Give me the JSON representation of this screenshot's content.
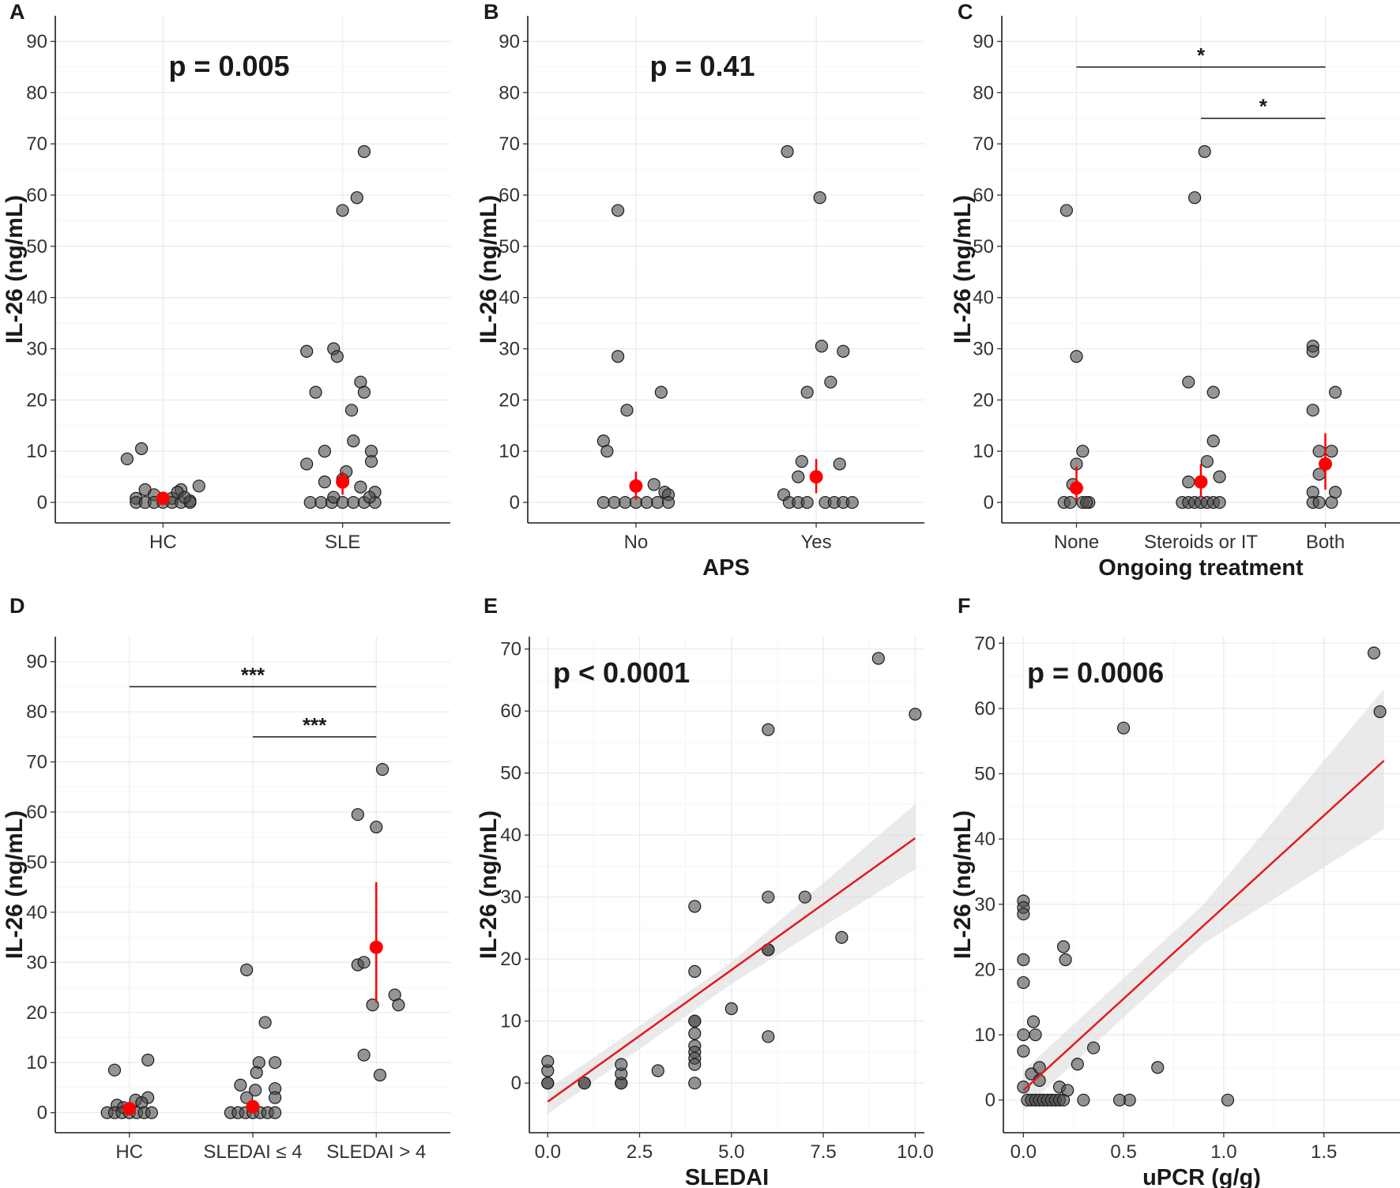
{
  "chart_data": [
    {
      "panel": "A",
      "type": "scatter",
      "ylabel": "IL-26 (ng/mL)",
      "xlabel": "",
      "ylim": [
        -4,
        95
      ],
      "yticks": [
        0,
        10,
        20,
        30,
        40,
        50,
        60,
        70,
        80,
        90
      ],
      "categories": [
        "HC",
        "SLE"
      ],
      "annotation": "p = 0.005",
      "points": [
        [
          [
            1,
            -0.2,
            8.5
          ],
          [
            1,
            -0.15,
            0.8
          ],
          [
            1,
            -0.1,
            2.5
          ],
          [
            1,
            -0.05,
            1.5
          ],
          [
            1,
            0.05,
            0.8
          ],
          [
            1,
            0.1,
            2.5
          ],
          [
            1,
            0.15,
            0.3
          ],
          [
            1,
            0.2,
            3.2
          ],
          [
            1,
            -0.15,
            0
          ],
          [
            1,
            -0.1,
            0
          ],
          [
            1,
            -0.05,
            0
          ],
          [
            1,
            0,
            0
          ],
          [
            1,
            0.05,
            0
          ],
          [
            1,
            0.1,
            0
          ],
          [
            1,
            0.15,
            0
          ],
          [
            1,
            -0.12,
            10.5
          ],
          [
            1,
            0.08,
            2
          ],
          [
            1,
            0.12,
            1
          ]
        ],
        [
          [
            2,
            -0.2,
            29.5
          ],
          [
            2,
            -0.15,
            21.5
          ],
          [
            2,
            -0.2,
            7.5
          ],
          [
            2,
            -0.1,
            10
          ],
          [
            2,
            -0.05,
            30
          ],
          [
            2,
            -0.03,
            28.5
          ],
          [
            2,
            0,
            57
          ],
          [
            2,
            0.08,
            59.5
          ],
          [
            2,
            0.12,
            68.5
          ],
          [
            2,
            0.1,
            23.5
          ],
          [
            2,
            0.12,
            21.5
          ],
          [
            2,
            0.05,
            18
          ],
          [
            2,
            0.06,
            12
          ],
          [
            2,
            0.16,
            10
          ],
          [
            2,
            0.16,
            8
          ],
          [
            2,
            -0.1,
            4
          ],
          [
            2,
            0,
            4.5
          ],
          [
            2,
            0.02,
            6
          ],
          [
            2,
            0.1,
            3
          ],
          [
            2,
            0.18,
            2
          ],
          [
            2,
            -0.18,
            0
          ],
          [
            2,
            -0.12,
            0
          ],
          [
            2,
            -0.06,
            0
          ],
          [
            2,
            0,
            0
          ],
          [
            2,
            0.06,
            0
          ],
          [
            2,
            0.12,
            0
          ],
          [
            2,
            0.18,
            0
          ],
          [
            2,
            -0.05,
            1
          ],
          [
            2,
            0.15,
            1
          ]
        ]
      ],
      "means": [
        [
          1,
          0.8,
          0.3,
          1.3
        ],
        [
          2,
          4,
          1.5,
          6
        ]
      ]
    },
    {
      "panel": "B",
      "type": "scatter",
      "ylabel": "IL-26 (ng/mL)",
      "xlabel": "APS",
      "ylim": [
        -4,
        95
      ],
      "yticks": [
        0,
        10,
        20,
        30,
        40,
        50,
        60,
        70,
        80,
        90
      ],
      "categories": [
        "No",
        "Yes"
      ],
      "annotation": "p = 0.41",
      "points": [
        [
          [
            1,
            -0.18,
            12
          ],
          [
            1,
            -0.16,
            10
          ],
          [
            1,
            -0.1,
            57
          ],
          [
            1,
            -0.1,
            28.5
          ],
          [
            1,
            -0.05,
            18
          ],
          [
            1,
            0.1,
            3.5
          ],
          [
            1,
            0.14,
            21.5
          ],
          [
            1,
            0.16,
            2
          ],
          [
            1,
            0.18,
            1.5
          ],
          [
            1,
            -0.18,
            0
          ],
          [
            1,
            -0.12,
            0
          ],
          [
            1,
            -0.06,
            0
          ],
          [
            1,
            0,
            0
          ],
          [
            1,
            0.06,
            0
          ],
          [
            1,
            0.12,
            0
          ],
          [
            1,
            0.18,
            0
          ]
        ],
        [
          [
            2,
            -0.16,
            68.5
          ],
          [
            2,
            0.02,
            59.5
          ],
          [
            2,
            0.15,
            29.5
          ],
          [
            2,
            0.03,
            30.5
          ],
          [
            2,
            -0.05,
            21.5
          ],
          [
            2,
            0.08,
            23.5
          ],
          [
            2,
            -0.1,
            5
          ],
          [
            2,
            -0.08,
            8
          ],
          [
            2,
            0.13,
            7.5
          ],
          [
            2,
            -0.18,
            1.5
          ],
          [
            2,
            -0.15,
            0
          ],
          [
            2,
            -0.1,
            0
          ],
          [
            2,
            -0.05,
            0
          ],
          [
            2,
            0.05,
            0
          ],
          [
            2,
            0.1,
            0
          ],
          [
            2,
            0.15,
            0
          ],
          [
            2,
            0.2,
            0
          ]
        ]
      ],
      "means": [
        [
          1,
          3.2,
          0.5,
          6
        ],
        [
          2,
          5,
          1.8,
          8.5
        ]
      ]
    },
    {
      "panel": "C",
      "type": "scatter",
      "ylabel": "IL-26 (ng/mL)",
      "xlabel": "Ongoing treatment",
      "ylim": [
        -4,
        95
      ],
      "yticks": [
        0,
        10,
        20,
        30,
        40,
        50,
        60,
        70,
        80,
        90
      ],
      "categories": [
        "None",
        "Steroids or IT",
        "Both"
      ],
      "annotation": "",
      "significance": [
        {
          "from": 1,
          "to": 3,
          "y": 85,
          "label": "*"
        },
        {
          "from": 2,
          "to": 3,
          "y": 75,
          "label": "*"
        }
      ],
      "points": [
        [
          [
            1,
            -0.08,
            57
          ],
          [
            1,
            0,
            28.5
          ],
          [
            1,
            0.05,
            10
          ],
          [
            1,
            0,
            7.5
          ],
          [
            1,
            -0.03,
            3.5
          ],
          [
            1,
            -0.1,
            0
          ],
          [
            1,
            -0.05,
            0
          ],
          [
            1,
            0.05,
            0
          ],
          [
            1,
            0.1,
            0
          ],
          [
            1,
            0.08,
            0
          ]
        ],
        [
          [
            2,
            -0.05,
            59.5
          ],
          [
            2,
            0.03,
            68.5
          ],
          [
            2,
            -0.1,
            23.5
          ],
          [
            2,
            0.1,
            21.5
          ],
          [
            2,
            0.1,
            12
          ],
          [
            2,
            0.05,
            8
          ],
          [
            2,
            -0.1,
            4
          ],
          [
            2,
            0.15,
            5
          ],
          [
            2,
            -0.15,
            0
          ],
          [
            2,
            -0.1,
            0
          ],
          [
            2,
            -0.05,
            0
          ],
          [
            2,
            0,
            0
          ],
          [
            2,
            0.05,
            0
          ],
          [
            2,
            0.1,
            0
          ],
          [
            2,
            0.15,
            0
          ]
        ],
        [
          [
            3,
            -0.1,
            30.5
          ],
          [
            3,
            -0.1,
            29.5
          ],
          [
            3,
            0.08,
            21.5
          ],
          [
            3,
            -0.1,
            18
          ],
          [
            3,
            -0.05,
            10
          ],
          [
            3,
            0.05,
            10
          ],
          [
            3,
            -0.05,
            5.5
          ],
          [
            3,
            0.08,
            2
          ],
          [
            3,
            -0.1,
            2
          ],
          [
            3,
            -0.1,
            0
          ],
          [
            3,
            -0.05,
            0
          ],
          [
            3,
            0.05,
            0
          ]
        ]
      ],
      "means": [
        [
          1,
          2.8,
          0.5,
          7
        ],
        [
          2,
          4,
          1,
          7.5
        ],
        [
          3,
          7.5,
          2.5,
          13.5
        ]
      ]
    },
    {
      "panel": "D",
      "type": "scatter",
      "ylabel": "IL-26 (ng/mL)",
      "xlabel": "",
      "ylim": [
        -4,
        95
      ],
      "yticks": [
        0,
        10,
        20,
        30,
        40,
        50,
        60,
        70,
        80,
        90
      ],
      "categories": [
        "HC",
        "SLEDAI ≤ 4",
        "SLEDAI > 4"
      ],
      "annotation": "",
      "significance": [
        {
          "from": 1,
          "to": 3,
          "y": 85,
          "label": "***"
        },
        {
          "from": 2,
          "to": 3,
          "y": 75,
          "label": "***"
        }
      ],
      "points": [
        [
          [
            1,
            -0.12,
            8.5
          ],
          [
            1,
            0.15,
            10.5
          ],
          [
            1,
            -0.1,
            1.5
          ],
          [
            1,
            -0.05,
            1
          ],
          [
            1,
            0.05,
            2.5
          ],
          [
            1,
            0.15,
            3
          ],
          [
            1,
            0.1,
            2
          ],
          [
            1,
            -0.18,
            0
          ],
          [
            1,
            -0.12,
            0
          ],
          [
            1,
            -0.06,
            0
          ],
          [
            1,
            0,
            0
          ],
          [
            1,
            0.06,
            0
          ],
          [
            1,
            0.12,
            0
          ],
          [
            1,
            0.18,
            0
          ]
        ],
        [
          [
            2,
            -0.05,
            28.5
          ],
          [
            2,
            0.1,
            18
          ],
          [
            2,
            0.18,
            10
          ],
          [
            2,
            0.05,
            10
          ],
          [
            2,
            0.03,
            8
          ],
          [
            2,
            -0.1,
            5.5
          ],
          [
            2,
            0.18,
            4.8
          ],
          [
            2,
            0.02,
            4.5
          ],
          [
            2,
            -0.05,
            3
          ],
          [
            2,
            0.18,
            3
          ],
          [
            2,
            -0.18,
            0
          ],
          [
            2,
            -0.12,
            0
          ],
          [
            2,
            -0.06,
            0
          ],
          [
            2,
            0,
            0
          ],
          [
            2,
            0.06,
            0
          ],
          [
            2,
            0.12,
            0
          ],
          [
            2,
            0.18,
            0
          ]
        ],
        [
          [
            3,
            -0.15,
            59.5
          ],
          [
            3,
            0.05,
            68.5
          ],
          [
            3,
            0,
            57
          ],
          [
            3,
            -0.15,
            29.5
          ],
          [
            3,
            -0.1,
            30
          ],
          [
            3,
            -0.03,
            21.5
          ],
          [
            3,
            0.15,
            23.5
          ],
          [
            3,
            0.18,
            21.5
          ],
          [
            3,
            -0.1,
            11.5
          ],
          [
            3,
            0.03,
            7.5
          ]
        ]
      ],
      "means": [
        [
          1,
          0.8,
          0.3,
          1.5
        ],
        [
          2,
          1.2,
          0.5,
          2.5
        ],
        [
          3,
          33,
          22,
          46
        ]
      ]
    },
    {
      "panel": "E",
      "type": "scatter",
      "ylabel": "IL-26 (ng/mL)",
      "xlabel": "SLEDAI",
      "xlim": [
        -0.5,
        10.25
      ],
      "ylim": [
        -8,
        72
      ],
      "xticks": [
        0,
        2.5,
        5,
        7.5,
        10
      ],
      "xticklabels": [
        "0.0",
        "2.5",
        "5.0",
        "7.5",
        "10.0"
      ],
      "yticks": [
        0,
        10,
        20,
        30,
        40,
        50,
        60,
        70
      ],
      "annotation": "p < 0.0001",
      "points": [
        [
          0,
          0
        ],
        [
          0,
          0
        ],
        [
          0,
          2
        ],
        [
          0,
          3.5
        ],
        [
          1,
          0
        ],
        [
          1,
          0
        ],
        [
          2,
          0
        ],
        [
          2,
          0
        ],
        [
          2,
          1.5
        ],
        [
          2,
          3
        ],
        [
          3,
          2
        ],
        [
          4,
          28.5
        ],
        [
          4,
          18
        ],
        [
          4,
          10
        ],
        [
          4,
          10
        ],
        [
          4,
          8
        ],
        [
          4,
          6
        ],
        [
          4,
          5
        ],
        [
          4,
          4
        ],
        [
          4,
          3
        ],
        [
          4,
          0
        ],
        [
          5,
          12
        ],
        [
          6,
          57
        ],
        [
          6,
          30
        ],
        [
          6,
          21.5
        ],
        [
          6,
          21.5
        ],
        [
          6,
          7.5
        ],
        [
          7,
          30
        ],
        [
          8,
          23.5
        ],
        [
          9,
          68.5
        ],
        [
          10,
          59.5
        ]
      ],
      "fit": {
        "x0": 0,
        "x1": 10,
        "y0": -3,
        "y1": 39.5
      },
      "ci": [
        [
          0,
          -1,
          -5
        ],
        [
          5,
          19.5,
          16
        ],
        [
          10,
          45,
          34.5
        ]
      ]
    },
    {
      "panel": "F",
      "type": "scatter",
      "ylabel": "IL-26 (ng/mL)",
      "xlabel": "uPCR (g/g)",
      "xlim": [
        -0.1,
        1.88
      ],
      "ylim": [
        -5,
        71
      ],
      "xticks": [
        0,
        0.5,
        1,
        1.5
      ],
      "xticklabels": [
        "0.0",
        "0.5",
        "1.0",
        "1.5"
      ],
      "yticks": [
        0,
        10,
        20,
        30,
        40,
        50,
        60,
        70
      ],
      "annotation": "p = 0.0006",
      "points": [
        [
          0,
          30.5
        ],
        [
          0,
          29.5
        ],
        [
          0,
          28.5
        ],
        [
          0,
          21.5
        ],
        [
          0,
          18
        ],
        [
          0,
          10
        ],
        [
          0,
          7.5
        ],
        [
          0,
          2
        ],
        [
          0.05,
          12
        ],
        [
          0.06,
          10
        ],
        [
          0.04,
          4
        ],
        [
          0.08,
          5
        ],
        [
          0.08,
          3
        ],
        [
          0.2,
          23.5
        ],
        [
          0.21,
          21.5
        ],
        [
          0.27,
          5.5
        ],
        [
          0.35,
          8
        ],
        [
          0.5,
          57
        ],
        [
          0.53,
          0
        ],
        [
          0.67,
          5
        ],
        [
          1.02,
          0
        ],
        [
          1.75,
          68.5
        ],
        [
          1.78,
          59.5
        ],
        [
          0.02,
          0
        ],
        [
          0.04,
          0
        ],
        [
          0.06,
          0
        ],
        [
          0.08,
          0
        ],
        [
          0.1,
          0
        ],
        [
          0.12,
          0
        ],
        [
          0.14,
          0
        ],
        [
          0.16,
          0
        ],
        [
          0.18,
          0
        ],
        [
          0.2,
          0
        ],
        [
          0.3,
          0
        ],
        [
          0.48,
          0
        ],
        [
          0.18,
          2
        ],
        [
          0.22,
          1.5
        ]
      ],
      "fit": {
        "x0": 0,
        "x1": 1.8,
        "y0": 1.5,
        "y1": 52
      },
      "ci": [
        [
          0,
          4.5,
          -1.5
        ],
        [
          0.9,
          30,
          24
        ],
        [
          1.8,
          63,
          41.5
        ]
      ]
    }
  ]
}
